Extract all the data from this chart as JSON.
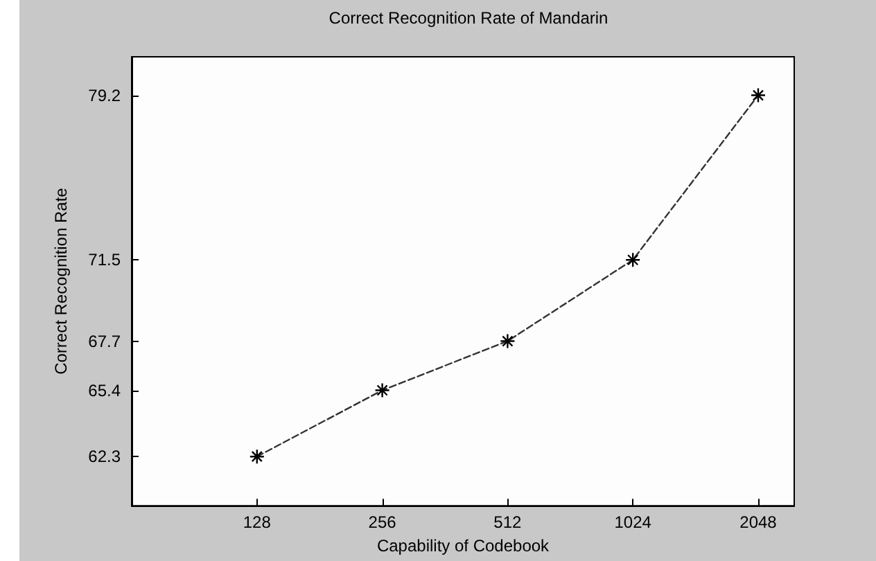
{
  "chart_data": {
    "type": "line",
    "title": "Correct Recognition Rate of Mandarin",
    "xlabel": "Capability of Codebook",
    "ylabel": "Correct Recognition Rate",
    "x": [
      128,
      256,
      512,
      1024,
      2048
    ],
    "series": [
      {
        "color": "#333333",
        "values": [
          62.3,
          65.4,
          67.7,
          71.5,
          79.2
        ]
      }
    ],
    "log": "x",
    "xlim": [
      64,
      2500
    ],
    "xticks": [
      128,
      256,
      512,
      1024,
      2048
    ],
    "ylim": [
      60,
      81
    ],
    "yticks": [
      62.3,
      65.4,
      67.7,
      71.5,
      79.2
    ],
    "grid": false,
    "marker": "cross",
    "line_style": "dashed"
  }
}
